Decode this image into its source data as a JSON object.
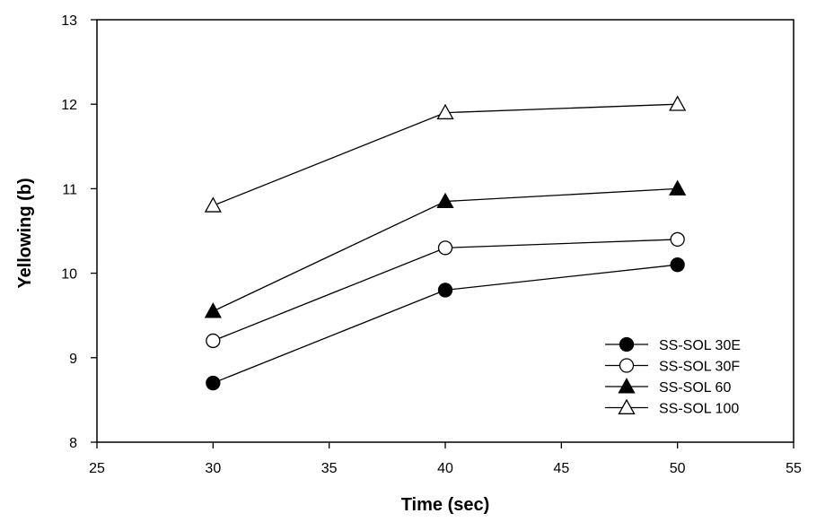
{
  "chart_data": {
    "type": "line",
    "title": "",
    "xlabel": "Time (sec)",
    "ylabel": "Yellowing (b)",
    "xlim": [
      25,
      55
    ],
    "ylim": [
      8,
      13
    ],
    "xticks": [
      "25",
      "30",
      "35",
      "40",
      "45",
      "50",
      "55"
    ],
    "yticks": [
      "8",
      "9",
      "10",
      "11",
      "12",
      "13"
    ],
    "grid": false,
    "legend_position": "bottom-right",
    "x": [
      30,
      40,
      50
    ],
    "series": [
      {
        "name": "SS-SOL 30E",
        "marker": "circle-filled",
        "values": [
          8.7,
          9.8,
          10.1
        ]
      },
      {
        "name": "SS-SOL 30F",
        "marker": "circle-open",
        "values": [
          9.2,
          10.3,
          10.4
        ]
      },
      {
        "name": "SS-SOL 60",
        "marker": "triangle-filled",
        "values": [
          9.55,
          10.85,
          11.0
        ]
      },
      {
        "name": "SS-SOL 100",
        "marker": "triangle-open",
        "values": [
          10.8,
          11.9,
          12.0
        ]
      }
    ]
  }
}
